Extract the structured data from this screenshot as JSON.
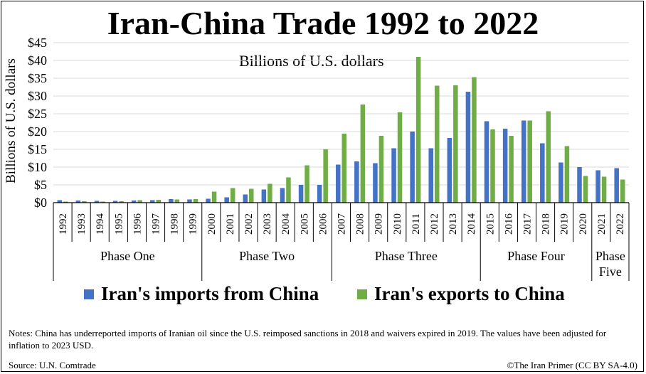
{
  "chart_data": {
    "type": "bar",
    "title": "Iran-China Trade 1992 to 2022",
    "subtitle": "Billions of U.S. dollars",
    "ylabel": "Billions of U.S. dollars",
    "ylim": [
      0,
      45
    ],
    "yticks": [
      "$0",
      "$5",
      "$10",
      "$15",
      "$20",
      "$25",
      "$30",
      "$35",
      "$40",
      "$45"
    ],
    "grid": true,
    "legend_position": "bottom",
    "categories": [
      "1992",
      "1993",
      "1994",
      "1995",
      "1996",
      "1997",
      "1998",
      "1999",
      "2000",
      "2001",
      "2002",
      "2003",
      "2004",
      "2005",
      "2006",
      "2007",
      "2008",
      "2009",
      "2010",
      "2011",
      "2012",
      "2013",
      "2014",
      "2015",
      "2016",
      "2017",
      "2018",
      "2019",
      "2020",
      "2021",
      "2022"
    ],
    "series": [
      {
        "name": "Iran's imports from China",
        "color": "#4472C4",
        "values": [
          0.7,
          0.6,
          0.5,
          0.5,
          0.6,
          0.7,
          1.0,
          0.9,
          1.1,
          1.5,
          2.3,
          3.7,
          4.1,
          5.0,
          5.0,
          10.7,
          11.6,
          11.1,
          15.3,
          20.0,
          15.3,
          18.2,
          31.2,
          22.9,
          20.8,
          23.1,
          16.7,
          11.3,
          10.0,
          9.1,
          9.7
        ]
      },
      {
        "name": "Iran's exports to China",
        "color": "#70AD47",
        "values": [
          0.3,
          0.4,
          0.3,
          0.4,
          0.7,
          0.8,
          0.9,
          1.0,
          3.1,
          4.1,
          3.9,
          5.3,
          7.1,
          10.5,
          15.0,
          19.4,
          27.6,
          18.8,
          25.4,
          41.0,
          32.9,
          33.0,
          35.3,
          20.6,
          18.8,
          23.1,
          25.7,
          15.9,
          7.5,
          7.3,
          6.5
        ]
      }
    ],
    "phases": [
      {
        "label": "Phase One",
        "lines": [
          "Phase One"
        ],
        "start": 0,
        "end": 7
      },
      {
        "label": "Phase Two",
        "lines": [
          "Phase Two"
        ],
        "start": 8,
        "end": 14
      },
      {
        "label": "Phase Three",
        "lines": [
          "Phase Three"
        ],
        "start": 15,
        "end": 22
      },
      {
        "label": "Phase Four",
        "lines": [
          "Phase Four"
        ],
        "start": 23,
        "end": 28
      },
      {
        "label": "Phase Five",
        "lines": [
          "Phase",
          "Five"
        ],
        "start": 29,
        "end": 30
      }
    ]
  },
  "notes": "Notes: China has underreported imports of Iranian oil since the U.S. reimposed sanctions in 2018 and waivers expired in 2019. The values have been adjusted for inflation to 2023 USD.",
  "source": "Source: U.N. Comtrade",
  "credit": "©The Iran Primer (CC BY SA-4.0)"
}
